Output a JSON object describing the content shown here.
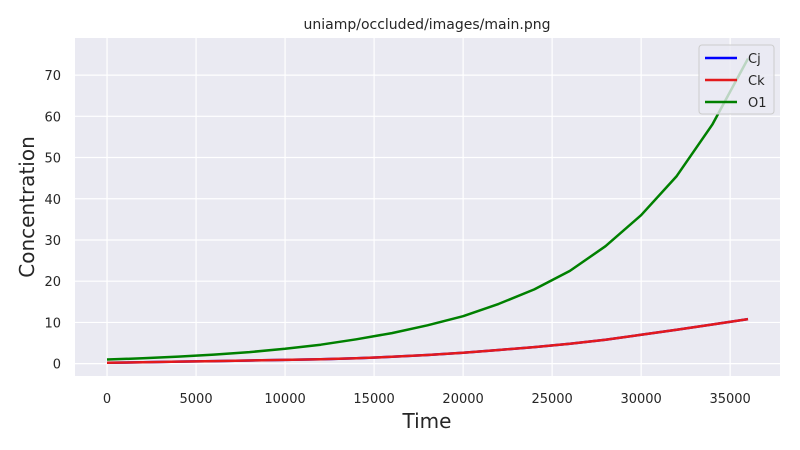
{
  "chart_data": {
    "type": "line",
    "title": "uniamp/occluded/images/main.png",
    "xlabel": "Time",
    "ylabel": "Concentration",
    "xlim": [
      -1800,
      37800
    ],
    "ylim": [
      -3,
      79
    ],
    "xticks": [
      0,
      5000,
      10000,
      15000,
      20000,
      25000,
      30000,
      35000
    ],
    "yticks": [
      0,
      10,
      20,
      30,
      40,
      50,
      60,
      70
    ],
    "grid": true,
    "legend_position": "top-right",
    "x": [
      0,
      2000,
      4000,
      6000,
      8000,
      10000,
      12000,
      14000,
      16000,
      18000,
      20000,
      22000,
      24000,
      26000,
      28000,
      30000,
      32000,
      34000,
      36000
    ],
    "series": [
      {
        "name": "Cj",
        "color": "#0000ff",
        "values": [
          0.2,
          0.35,
          0.5,
          0.62,
          0.75,
          0.9,
          1.05,
          1.3,
          1.65,
          2.1,
          2.65,
          3.3,
          4.0,
          4.8,
          5.8,
          7.0,
          8.2,
          9.5,
          10.8
        ]
      },
      {
        "name": "Ck",
        "color": "#e31a1c",
        "values": [
          0.2,
          0.35,
          0.5,
          0.62,
          0.75,
          0.9,
          1.05,
          1.3,
          1.65,
          2.1,
          2.65,
          3.3,
          4.0,
          4.8,
          5.8,
          7.0,
          8.2,
          9.5,
          10.8
        ]
      },
      {
        "name": "O1",
        "color": "#008000",
        "values": [
          1.0,
          1.3,
          1.7,
          2.2,
          2.8,
          3.6,
          4.6,
          5.9,
          7.4,
          9.3,
          11.5,
          14.5,
          18.0,
          22.5,
          28.5,
          36.0,
          45.5,
          58.0,
          74.0
        ]
      }
    ]
  }
}
